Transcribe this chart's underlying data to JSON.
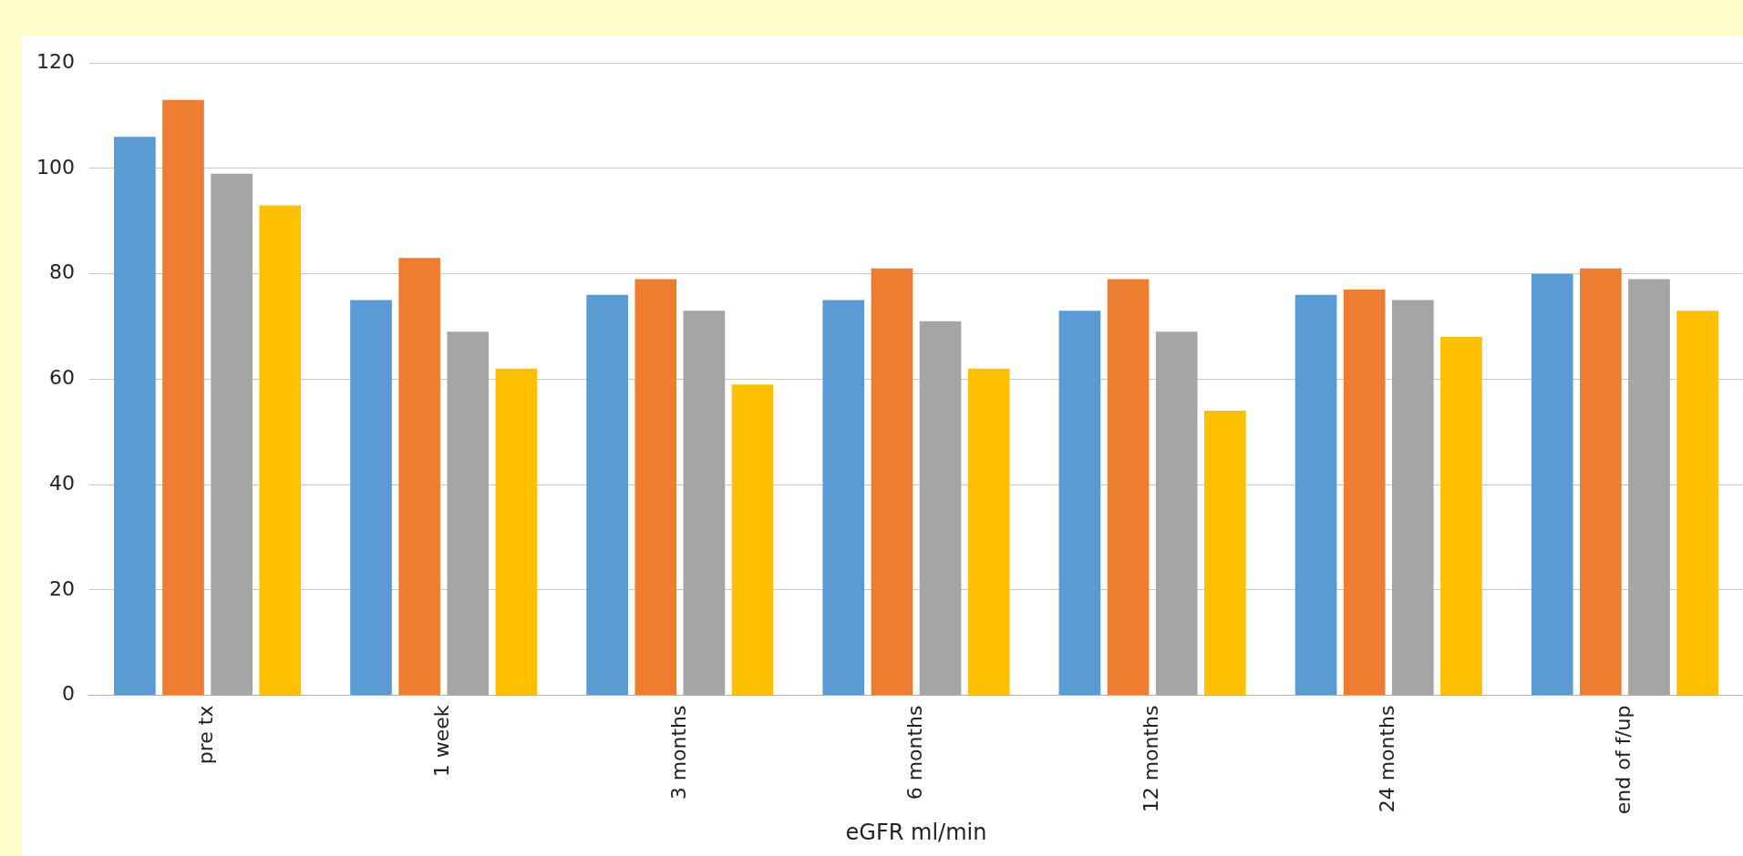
{
  "chart_data": {
    "type": "bar",
    "xlabel": "eGFR ml/min",
    "categories": [
      "pre tx",
      "1 week",
      "3 months",
      "6 months",
      "12 months",
      "24 months",
      "end of f/up"
    ],
    "series": [
      {
        "color": "#5b9bd5",
        "values": [
          106,
          75,
          76,
          75,
          73,
          76,
          80
        ]
      },
      {
        "color": "#ed7d31",
        "values": [
          113,
          83,
          79,
          81,
          79,
          77,
          81
        ]
      },
      {
        "color": "#a5a5a5",
        "values": [
          99,
          69,
          73,
          71,
          69,
          75,
          79
        ]
      },
      {
        "color": "#ffc000",
        "values": [
          93,
          62,
          59,
          62,
          54,
          68,
          73
        ]
      }
    ],
    "ylim": [
      0,
      120
    ],
    "yticks": [
      0,
      20,
      40,
      60,
      80,
      100,
      120
    ],
    "grid": "y",
    "legend": false
  }
}
